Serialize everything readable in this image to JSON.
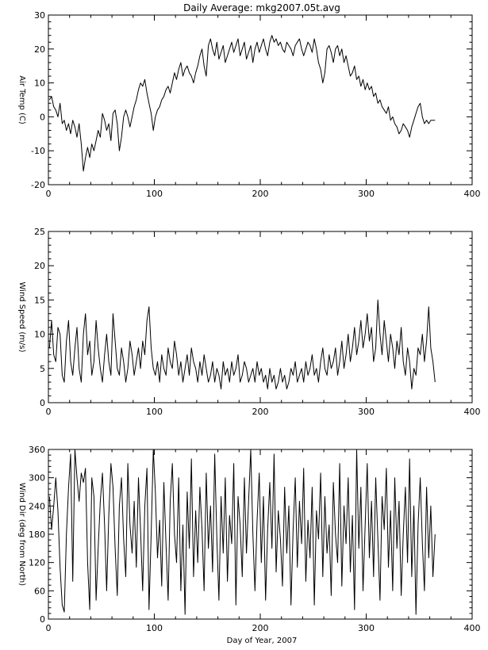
{
  "title": "Daily Average: mkg2007.05t.avg",
  "xlabel": "Day of Year, 2007",
  "chart_data": [
    {
      "type": "line",
      "ylabel": "Air Temp (C)",
      "xlim": [
        0,
        400
      ],
      "ylim": [
        -20,
        30
      ],
      "xticks": [
        0,
        100,
        200,
        300,
        400
      ],
      "yticks": [
        -20,
        -10,
        0,
        10,
        20,
        30
      ],
      "grid": false,
      "series": [
        {
          "x": [
            1,
            3,
            5,
            7,
            9,
            11,
            13,
            15,
            17,
            19,
            21,
            23,
            25,
            27,
            29,
            31,
            33,
            35,
            37,
            39,
            41,
            43,
            45,
            47,
            49,
            51,
            53,
            55,
            57,
            59,
            61,
            63,
            65,
            67,
            69,
            71,
            73,
            75,
            77,
            79,
            81,
            83,
            85,
            87,
            89,
            91,
            93,
            95,
            97,
            99,
            101,
            103,
            105,
            107,
            109,
            111,
            113,
            115,
            117,
            119,
            121,
            123,
            125,
            127,
            129,
            131,
            133,
            135,
            137,
            139,
            141,
            143,
            145,
            147,
            149,
            151,
            153,
            155,
            157,
            159,
            161,
            163,
            165,
            167,
            169,
            171,
            173,
            175,
            177,
            179,
            181,
            183,
            185,
            187,
            189,
            191,
            193,
            195,
            197,
            199,
            201,
            203,
            205,
            207,
            209,
            211,
            213,
            215,
            217,
            219,
            221,
            223,
            225,
            227,
            229,
            231,
            233,
            235,
            237,
            239,
            241,
            243,
            245,
            247,
            249,
            251,
            253,
            255,
            257,
            259,
            261,
            263,
            265,
            267,
            269,
            271,
            273,
            275,
            277,
            279,
            281,
            283,
            285,
            287,
            289,
            291,
            293,
            295,
            297,
            299,
            301,
            303,
            305,
            307,
            309,
            311,
            313,
            315,
            317,
            319,
            321,
            323,
            325,
            327,
            329,
            331,
            333,
            335,
            337,
            339,
            341,
            343,
            345,
            347,
            349,
            351,
            353,
            355,
            357,
            359,
            361,
            363,
            365
          ],
          "y": [
            5,
            6,
            3,
            2,
            0,
            4,
            -2,
            -1,
            -4,
            -2,
            -5,
            -1,
            -3,
            -6,
            -2,
            -8,
            -16,
            -12,
            -9,
            -12,
            -8,
            -10,
            -7,
            -4,
            -6,
            1,
            -1,
            -4,
            -2,
            -7,
            1,
            2,
            -2,
            -10,
            -6,
            0,
            2,
            0,
            -3,
            0,
            3,
            5,
            8,
            10,
            9,
            11,
            7,
            4,
            1,
            -4,
            0,
            2,
            3,
            5,
            6,
            8,
            9,
            7,
            10,
            13,
            11,
            14,
            16,
            12,
            14,
            15,
            13,
            12,
            10,
            13,
            15,
            18,
            20,
            15,
            12,
            21,
            23,
            20,
            18,
            22,
            17,
            19,
            21,
            16,
            18,
            20,
            22,
            19,
            21,
            23,
            18,
            20,
            22,
            17,
            19,
            21,
            16,
            20,
            22,
            19,
            21,
            23,
            20,
            18,
            22,
            24,
            22,
            23,
            21,
            22,
            20,
            19,
            22,
            21,
            20,
            18,
            21,
            22,
            23,
            20,
            18,
            20,
            22,
            21,
            19,
            23,
            20,
            16,
            14,
            10,
            13,
            20,
            21,
            19,
            16,
            20,
            21,
            18,
            20,
            16,
            18,
            15,
            12,
            13,
            15,
            11,
            12,
            9,
            11,
            8,
            10,
            8,
            9,
            6,
            7,
            4,
            5,
            3,
            2,
            1,
            3,
            -1,
            0,
            -2,
            -3,
            -5,
            -4,
            -2,
            -3,
            -4,
            -6,
            -3,
            -1,
            1,
            3,
            4,
            0,
            -2,
            -1,
            -2,
            -1,
            -1,
            -1
          ],
          "color": "#000000"
        }
      ]
    },
    {
      "type": "line",
      "ylabel": "Wind Speed (m/s)",
      "xlim": [
        0,
        400
      ],
      "ylim": [
        0,
        25
      ],
      "xticks": [
        0,
        100,
        200,
        300,
        400
      ],
      "yticks": [
        0,
        5,
        10,
        15,
        20,
        25
      ],
      "grid": false,
      "series": [
        {
          "x": [
            1,
            3,
            5,
            7,
            9,
            11,
            13,
            15,
            17,
            19,
            21,
            23,
            25,
            27,
            29,
            31,
            33,
            35,
            37,
            39,
            41,
            43,
            45,
            47,
            49,
            51,
            53,
            55,
            57,
            59,
            61,
            63,
            65,
            67,
            69,
            71,
            73,
            75,
            77,
            79,
            81,
            83,
            85,
            87,
            89,
            91,
            93,
            95,
            97,
            99,
            101,
            103,
            105,
            107,
            109,
            111,
            113,
            115,
            117,
            119,
            121,
            123,
            125,
            127,
            129,
            131,
            133,
            135,
            137,
            139,
            141,
            143,
            145,
            147,
            149,
            151,
            153,
            155,
            157,
            159,
            161,
            163,
            165,
            167,
            169,
            171,
            173,
            175,
            177,
            179,
            181,
            183,
            185,
            187,
            189,
            191,
            193,
            195,
            197,
            199,
            201,
            203,
            205,
            207,
            209,
            211,
            213,
            215,
            217,
            219,
            221,
            223,
            225,
            227,
            229,
            231,
            233,
            235,
            237,
            239,
            241,
            243,
            245,
            247,
            249,
            251,
            253,
            255,
            257,
            259,
            261,
            263,
            265,
            267,
            269,
            271,
            273,
            275,
            277,
            279,
            281,
            283,
            285,
            287,
            289,
            291,
            293,
            295,
            297,
            299,
            301,
            303,
            305,
            307,
            309,
            311,
            313,
            315,
            317,
            319,
            321,
            323,
            325,
            327,
            329,
            331,
            333,
            335,
            337,
            339,
            341,
            343,
            345,
            347,
            349,
            351,
            353,
            355,
            357,
            359,
            361,
            363,
            365
          ],
          "y": [
            8,
            12,
            7,
            6,
            11,
            10,
            4,
            3,
            9,
            12,
            6,
            4,
            8,
            11,
            5,
            3,
            10,
            13,
            7,
            9,
            4,
            6,
            12,
            8,
            5,
            3,
            7,
            10,
            6,
            4,
            13,
            9,
            5,
            4,
            8,
            6,
            3,
            5,
            9,
            7,
            4,
            6,
            8,
            5,
            9,
            7,
            12,
            14,
            8,
            5,
            4,
            6,
            3,
            7,
            5,
            4,
            8,
            6,
            5,
            9,
            7,
            4,
            6,
            3,
            5,
            7,
            4,
            8,
            6,
            5,
            3,
            6,
            4,
            7,
            5,
            3,
            4,
            6,
            3,
            5,
            4,
            2,
            6,
            4,
            5,
            3,
            6,
            4,
            5,
            7,
            3,
            4,
            6,
            5,
            3,
            4,
            5,
            3,
            6,
            4,
            5,
            3,
            4,
            2,
            5,
            3,
            4,
            2,
            3,
            5,
            3,
            4,
            2,
            3,
            5,
            4,
            6,
            3,
            4,
            5,
            3,
            6,
            4,
            5,
            7,
            4,
            5,
            3,
            6,
            8,
            5,
            4,
            7,
            5,
            6,
            8,
            4,
            6,
            9,
            5,
            7,
            10,
            6,
            8,
            11,
            7,
            9,
            12,
            8,
            10,
            13,
            9,
            11,
            6,
            8,
            15,
            10,
            7,
            12,
            9,
            6,
            10,
            8,
            5,
            9,
            7,
            11,
            6,
            4,
            8,
            6,
            2,
            5,
            4,
            8,
            7,
            10,
            6,
            9,
            14,
            8,
            6,
            3
          ],
          "color": "#000000"
        }
      ]
    },
    {
      "type": "line",
      "ylabel": "Wind Dir (deg from North)",
      "xlim": [
        0,
        400
      ],
      "ylim": [
        0,
        360
      ],
      "xticks": [
        0,
        100,
        200,
        300,
        400
      ],
      "yticks": [
        0,
        60,
        120,
        180,
        240,
        300,
        360
      ],
      "grid": false,
      "series": [
        {
          "x": [
            1,
            3,
            5,
            7,
            9,
            11,
            13,
            15,
            17,
            19,
            21,
            23,
            25,
            27,
            29,
            31,
            33,
            35,
            37,
            39,
            41,
            43,
            45,
            47,
            49,
            51,
            53,
            55,
            57,
            59,
            61,
            63,
            65,
            67,
            69,
            71,
            73,
            75,
            77,
            79,
            81,
            83,
            85,
            87,
            89,
            91,
            93,
            95,
            97,
            99,
            101,
            103,
            105,
            107,
            109,
            111,
            113,
            115,
            117,
            119,
            121,
            123,
            125,
            127,
            129,
            131,
            133,
            135,
            137,
            139,
            141,
            143,
            145,
            147,
            149,
            151,
            153,
            155,
            157,
            159,
            161,
            163,
            165,
            167,
            169,
            171,
            173,
            175,
            177,
            179,
            181,
            183,
            185,
            187,
            189,
            191,
            193,
            195,
            197,
            199,
            201,
            203,
            205,
            207,
            209,
            211,
            213,
            215,
            217,
            219,
            221,
            223,
            225,
            227,
            229,
            231,
            233,
            235,
            237,
            239,
            241,
            243,
            245,
            247,
            249,
            251,
            253,
            255,
            257,
            259,
            261,
            263,
            265,
            267,
            269,
            271,
            273,
            275,
            277,
            279,
            281,
            283,
            285,
            287,
            289,
            291,
            293,
            295,
            297,
            299,
            301,
            303,
            305,
            307,
            309,
            311,
            313,
            315,
            317,
            319,
            321,
            323,
            325,
            327,
            329,
            331,
            333,
            335,
            337,
            339,
            341,
            343,
            345,
            347,
            349,
            351,
            353,
            355,
            357,
            359,
            361,
            363,
            365
          ],
          "y": [
            260,
            190,
            240,
            300,
            230,
            110,
            30,
            15,
            180,
            280,
            350,
            80,
            360,
            300,
            250,
            310,
            290,
            320,
            120,
            20,
            300,
            260,
            40,
            150,
            250,
            310,
            200,
            60,
            220,
            330,
            280,
            150,
            50,
            240,
            300,
            170,
            90,
            330,
            200,
            140,
            250,
            110,
            300,
            190,
            60,
            240,
            320,
            20,
            180,
            360,
            270,
            130,
            210,
            70,
            290,
            160,
            40,
            250,
            330,
            180,
            120,
            300,
            60,
            200,
            10,
            270,
            150,
            340,
            90,
            230,
            120,
            280,
            190,
            60,
            310,
            150,
            240,
            100,
            350,
            170,
            40,
            260,
            140,
            300,
            80,
            220,
            160,
            330,
            30,
            260,
            200,
            90,
            300,
            140,
            250,
            360,
            180,
            60,
            210,
            310,
            120,
            260,
            40,
            190,
            290,
            150,
            350,
            100,
            230,
            170,
            70,
            280,
            140,
            240,
            30,
            190,
            300,
            110,
            250,
            160,
            320,
            80,
            210,
            130,
            280,
            30,
            230,
            170,
            310,
            90,
            260,
            140,
            200,
            50,
            290,
            180,
            120,
            330,
            70,
            240,
            160,
            300,
            100,
            220,
            20,
            360,
            150,
            280,
            60,
            200,
            330,
            130,
            250,
            90,
            300,
            170,
            40,
            260,
            190,
            320,
            110,
            230,
            60,
            300,
            150,
            250,
            50,
            180,
            280,
            120,
            340,
            90,
            240,
            10,
            200,
            300,
            160,
            60,
            280,
            130,
            240,
            90,
            180
          ],
          "color": "#000000"
        }
      ]
    }
  ]
}
